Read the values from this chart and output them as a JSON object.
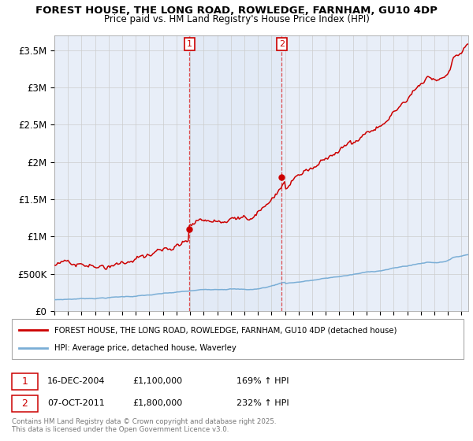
{
  "title1": "FOREST HOUSE, THE LONG ROAD, ROWLEDGE, FARNHAM, GU10 4DP",
  "title2": "Price paid vs. HM Land Registry's House Price Index (HPI)",
  "ylim": [
    0,
    3700000
  ],
  "yticks": [
    0,
    500000,
    1000000,
    1500000,
    2000000,
    2500000,
    3000000,
    3500000
  ],
  "ytick_labels": [
    "£0",
    "£500K",
    "£1M",
    "£1.5M",
    "£2M",
    "£2.5M",
    "£3M",
    "£3.5M"
  ],
  "legend_line1": "FOREST HOUSE, THE LONG ROAD, ROWLEDGE, FARNHAM, GU10 4DP (detached house)",
  "legend_line2": "HPI: Average price, detached house, Waverley",
  "line1_color": "#cc0000",
  "line2_color": "#7aaed6",
  "transaction1_year": 2004.958,
  "transaction1_price": 1100000,
  "transaction1_date": "16-DEC-2004",
  "transaction1_label": "169% ↑ HPI",
  "transaction2_year": 2011.75,
  "transaction2_price": 1800000,
  "transaction2_date": "07-OCT-2011",
  "transaction2_label": "232% ↑ HPI",
  "footnote": "Contains HM Land Registry data © Crown copyright and database right 2025.\nThis data is licensed under the Open Government Licence v3.0.",
  "background_color": "#ffffff",
  "plot_bg_color": "#e8eef8",
  "grid_color": "#cccccc"
}
